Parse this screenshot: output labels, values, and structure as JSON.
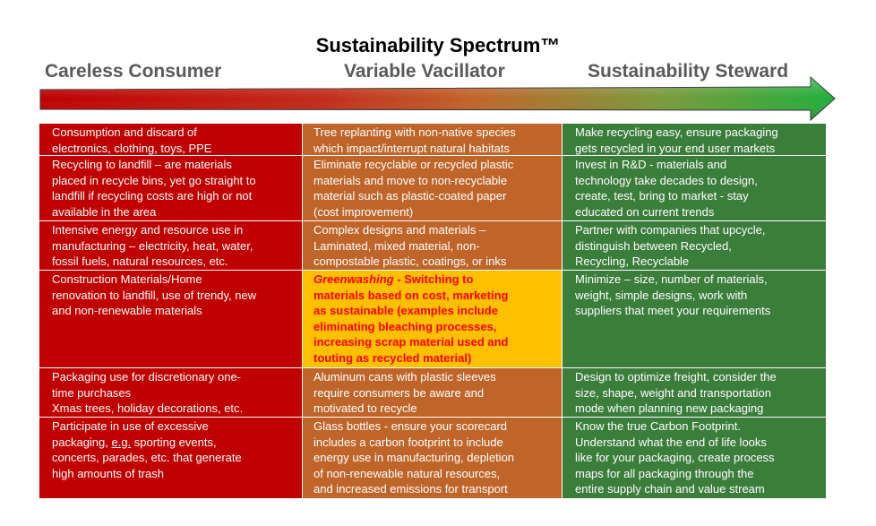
{
  "title": "Sustainability Spectrum™",
  "scale": {
    "left": "Careless Consumer",
    "middle": "Variable Vacillator",
    "right": "Sustainability Steward"
  },
  "colors": {
    "red": "#c00000",
    "orange": "#c0652a",
    "green": "#3b7d3b",
    "highlight": "#ffc000",
    "greenwashing_text": "#ff0000"
  },
  "rows": [
    {
      "consumer": [
        "Consumption and discard of",
        "electronics, clothing, toys, PPE"
      ],
      "vacillator": [
        "Tree replanting with non-native species",
        "which impact/interrupt natural habitats"
      ],
      "steward": [
        "Make recycling easy, ensure packaging",
        "gets recycled in your end user markets"
      ]
    },
    {
      "consumer": [
        "Recycling to landfill – are materials",
        "placed in recycle bins, yet go straight to",
        "landfill if recycling costs are high or not",
        "available in the area"
      ],
      "vacillator": [
        "Eliminate recyclable or recycled plastic",
        "materials and move to non-recyclable",
        "material such as plastic-coated paper",
        "(cost improvement)"
      ],
      "steward": [
        "Invest in R&D - materials and",
        "technology take decades to design,",
        "create, test, bring to market - stay",
        "educated on current trends"
      ]
    },
    {
      "consumer": [
        "Intensive energy and resource use in",
        "manufacturing – electricity, heat, water,",
        "fossil fuels, natural resources, etc."
      ],
      "vacillator": [
        "Complex designs and materials –",
        "Laminated, mixed material, non-",
        "compostable plastic, coatings, or inks"
      ],
      "steward": [
        "Partner with companies that upcycle,",
        "distinguish between Recycled,",
        "Recycling, Recyclable"
      ]
    },
    {
      "consumer": [
        "Construction Materials/Home",
        "renovation to landfill, use of trendy, new",
        "and non-renewable materials"
      ],
      "vacillator_greenwashing": {
        "term": "Greenwashing",
        "first_line_rest": " - Switching to",
        "lines": [
          "materials based on cost, marketing",
          "as sustainable (examples include",
          "eliminating bleaching processes,",
          "increasing scrap material used and",
          "touting as recycled material)"
        ]
      },
      "steward": [
        "Minimize – size, number of materials,",
        "weight, simple designs, work with",
        "suppliers that meet your requirements"
      ]
    },
    {
      "consumer": [
        "Packaging use for discretionary one-",
        "time purchases",
        "Xmas trees, holiday decorations, etc."
      ],
      "vacillator": [
        "Aluminum cans with plastic sleeves",
        "require consumers be aware and",
        "motivated to recycle"
      ],
      "steward": [
        "Design to optimize freight, consider the",
        "size, shape, weight and transportation",
        "mode when planning new packaging"
      ]
    },
    {
      "consumer_first": {
        "before": "Participate in use of excessive",
        "line2_pre": "packaging, ",
        "line2_u": "e.g.",
        "line2_post": " sporting events,"
      },
      "consumer": [
        "concerts, parades, etc. that generate",
        "high amounts of trash"
      ],
      "vacillator": [
        "Glass bottles - ensure your scorecard",
        "includes a carbon footprint to include",
        "energy use in manufacturing, depletion",
        "of non-renewable natural resources,",
        "and increased emissions for transport"
      ],
      "steward": [
        "Know the true Carbon Footprint.",
        "Understand what the end of life looks",
        "like for your packaging, create process",
        "maps for all packaging through the",
        "entire supply chain and value stream"
      ]
    }
  ]
}
